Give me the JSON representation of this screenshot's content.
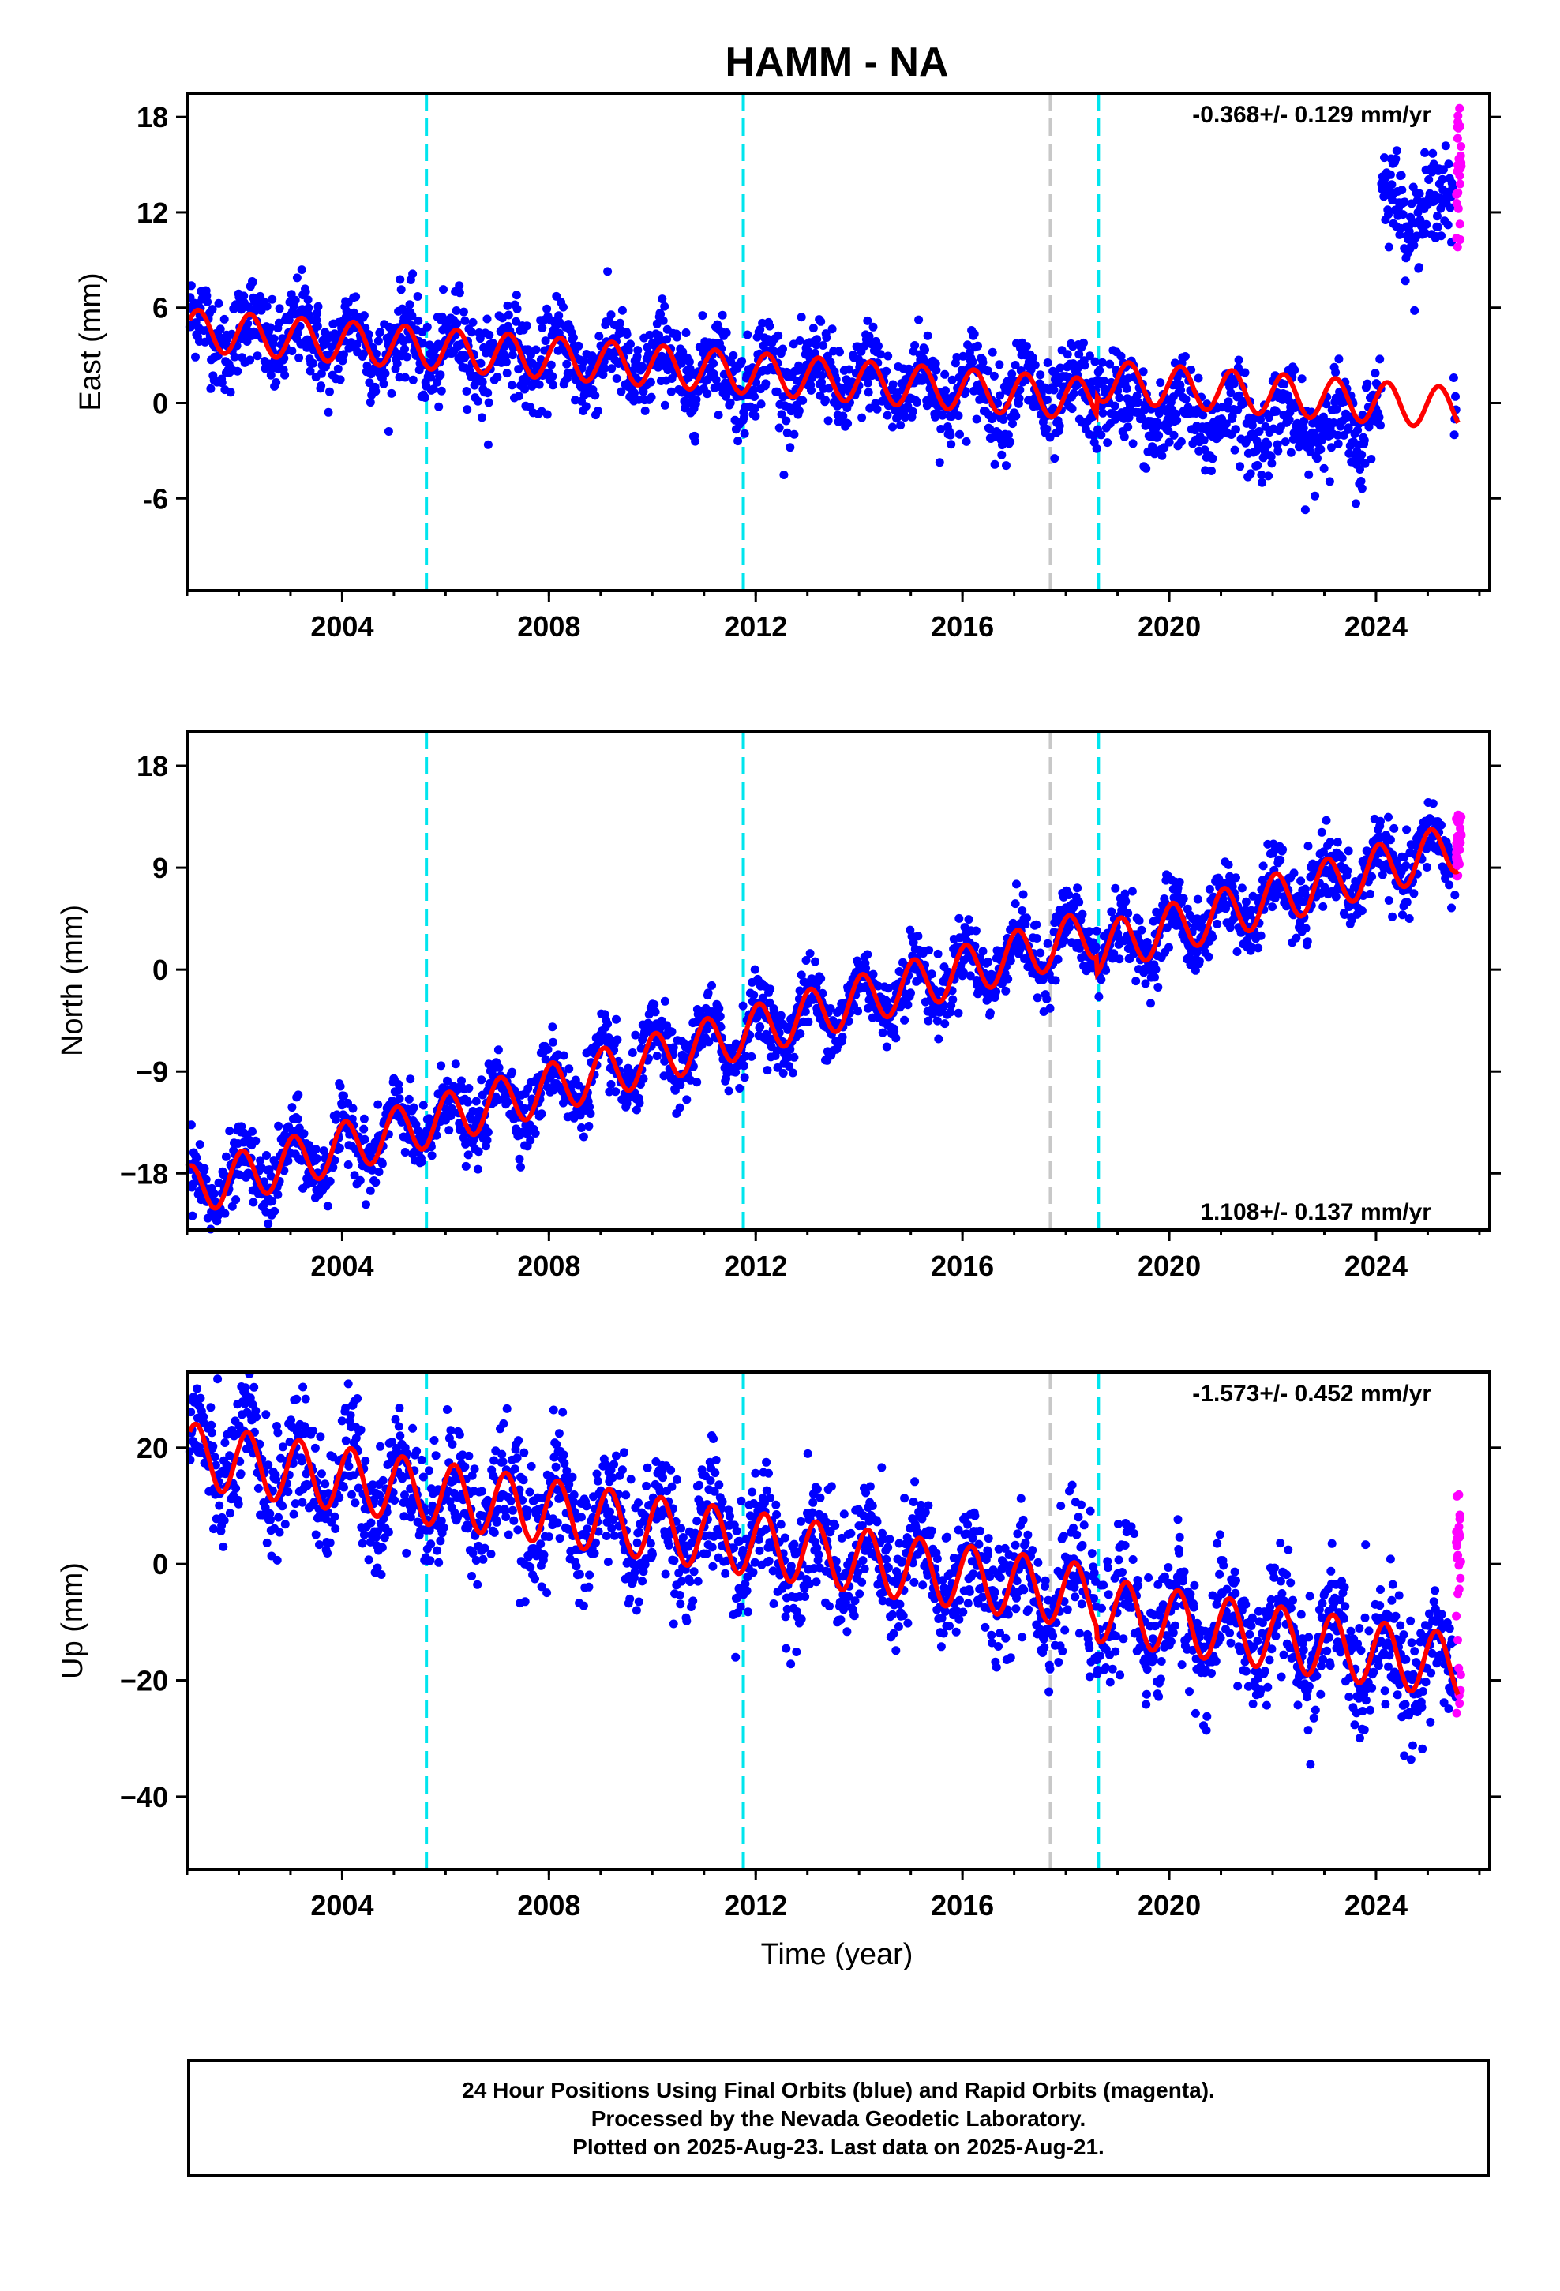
{
  "chart_data": [
    {
      "type": "scatter",
      "title": "HAMM - NA",
      "ylabel": "East (mm)",
      "xlabel": "",
      "xlim": [
        2001.0,
        2026.2
      ],
      "ylim": [
        -11.8,
        19.5
      ],
      "x_ticks": [
        2004,
        2008,
        2012,
        2016,
        2020,
        2024
      ],
      "x_tick_labels": [
        "2004",
        "2008",
        "2012",
        "2016",
        "2020",
        "2024"
      ],
      "y_ticks": [
        -6,
        0,
        6,
        12,
        18
      ],
      "y_tick_labels": [
        "-6",
        "0",
        "6",
        "12",
        "18"
      ],
      "velocity_label": "-0.368+/- 0.129 mm/yr",
      "velocity_label_position": "top-right",
      "model": {
        "offset": 1.6,
        "trend": -0.25,
        "amp": 1.3,
        "phase": 0.2,
        "steps": [
          {
            "t": 2018.6,
            "dy": 1.2
          }
        ],
        "end": 2025.6
      },
      "observations": {
        "start": 2001.05,
        "end": 2025.55,
        "noise": 1.4,
        "offsets": [
          {
            "from": 2019.0,
            "to": 2023.8,
            "dy": -1.8
          },
          {
            "from": 2024.1,
            "to": 2025.5,
            "dy": 12.5
          }
        ]
      },
      "series": [
        {
          "name": "Final Orbits",
          "color": "#0000ff"
        },
        {
          "name": "Rapid Orbits",
          "color": "#ff00ff",
          "x_range": [
            2025.55,
            2025.65
          ],
          "y_range": [
            9.5,
            19
          ]
        },
        {
          "name": "Model",
          "color": "#ff0000"
        }
      ],
      "vertical_lines": [
        {
          "x": 2005.63,
          "color": "#00e5ee",
          "style": "dashed"
        },
        {
          "x": 2011.76,
          "color": "#00e5ee",
          "style": "dashed"
        },
        {
          "x": 2017.7,
          "color": "#c8c8c8",
          "style": "dashed"
        },
        {
          "x": 2018.63,
          "color": "#00e5ee",
          "style": "dashed"
        }
      ]
    },
    {
      "type": "scatter",
      "title": "",
      "ylabel": "North (mm)",
      "xlabel": "",
      "xlim": [
        2001.0,
        2026.2
      ],
      "ylim": [
        -23.0,
        21.0
      ],
      "x_ticks": [
        2004,
        2008,
        2012,
        2016,
        2020,
        2024
      ],
      "x_tick_labels": [
        "2004",
        "2008",
        "2012",
        "2016",
        "2020",
        "2024"
      ],
      "y_ticks": [
        -18,
        -9,
        0,
        9,
        18
      ],
      "y_tick_labels": [
        "−18",
        "−9",
        "0",
        "9",
        "18"
      ],
      "velocity_label": "1.108+/- 0.137 mm/yr",
      "velocity_label_position": "bottom-right",
      "model": {
        "offset": -4.0,
        "trend": 1.3,
        "amp": 2.2,
        "phase": 1.2,
        "steps": [
          {
            "t": 2018.6,
            "dy": -1.5
          }
        ],
        "end": 2025.6
      },
      "observations": {
        "start": 2001.05,
        "end": 2025.55,
        "noise": 1.5,
        "offsets": []
      },
      "series": [
        {
          "name": "Final Orbits",
          "color": "#0000ff"
        },
        {
          "name": "Rapid Orbits",
          "color": "#ff00ff",
          "x_range": [
            2025.55,
            2025.65
          ],
          "y_range": [
            8,
            14
          ]
        },
        {
          "name": "Model",
          "color": "#ff0000"
        }
      ],
      "vertical_lines": [
        {
          "x": 2005.63,
          "color": "#00e5ee",
          "style": "dashed"
        },
        {
          "x": 2011.76,
          "color": "#00e5ee",
          "style": "dashed"
        },
        {
          "x": 2017.7,
          "color": "#c8c8c8",
          "style": "dashed"
        },
        {
          "x": 2018.63,
          "color": "#00e5ee",
          "style": "dashed"
        }
      ]
    },
    {
      "type": "scatter",
      "title": "",
      "ylabel": "Up (mm)",
      "xlabel": "Time (year)",
      "xlim": [
        2001.0,
        2026.2
      ],
      "ylim": [
        -52.5,
        33.0
      ],
      "x_ticks": [
        2004,
        2008,
        2012,
        2016,
        2020,
        2024
      ],
      "x_tick_labels": [
        "2004",
        "2008",
        "2012",
        "2016",
        "2020",
        "2024"
      ],
      "y_ticks": [
        -40,
        -20,
        0,
        20
      ],
      "y_tick_labels": [
        "−40",
        "−20",
        "0",
        "20"
      ],
      "velocity_label": "-1.573+/- 0.452 mm/yr",
      "velocity_label_position": "top-right",
      "model": {
        "offset": 2.0,
        "trend": -1.4,
        "amp": 5.5,
        "phase": 0.5,
        "steps": [
          {
            "t": 2018.6,
            "dy": -2.0
          }
        ],
        "end": 2025.6
      },
      "observations": {
        "start": 2001.05,
        "end": 2025.55,
        "noise": 5.2,
        "offsets": []
      },
      "series": [
        {
          "name": "Final Orbits",
          "color": "#0000ff"
        },
        {
          "name": "Rapid Orbits",
          "color": "#ff00ff",
          "x_range": [
            2025.55,
            2025.65
          ],
          "y_range": [
            -28,
            12
          ]
        },
        {
          "name": "Model",
          "color": "#ff0000"
        }
      ],
      "vertical_lines": [
        {
          "x": 2005.63,
          "color": "#00e5ee",
          "style": "dashed"
        },
        {
          "x": 2011.76,
          "color": "#00e5ee",
          "style": "dashed"
        },
        {
          "x": 2017.7,
          "color": "#c8c8c8",
          "style": "dashed"
        },
        {
          "x": 2018.63,
          "color": "#00e5ee",
          "style": "dashed"
        }
      ]
    }
  ],
  "footer": {
    "line1": "24 Hour Positions Using Final Orbits (blue) and Rapid Orbits (magenta).",
    "line2": "Processed by the Nevada Geodetic Laboratory.",
    "line3": "Plotted on 2025-Aug-23. Last data on 2025-Aug-21."
  }
}
